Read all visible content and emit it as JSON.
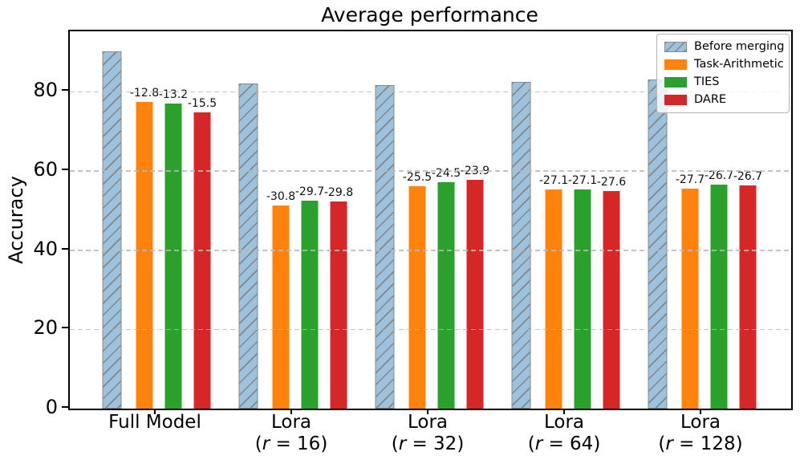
{
  "figure": {
    "title": "Average performance",
    "ylabel": "Accuracy"
  },
  "chart_data": {
    "type": "bar",
    "title": "Average performance",
    "xlabel": "",
    "ylabel": "Accuracy",
    "ylim": [
      0,
      95.3
    ],
    "yticks": [
      0,
      20,
      40,
      60,
      80
    ],
    "grid": "horizontal dashed gridlines drawn above bars",
    "legend_position": "upper right",
    "categories": [
      {
        "line1": "Full Model",
        "line2": ""
      },
      {
        "line1": "Lora",
        "line2": "(r = 16)"
      },
      {
        "line1": "Lora",
        "line2": "(r = 32)"
      },
      {
        "line1": "Lora",
        "line2": "(r = 64)"
      },
      {
        "line1": "Lora",
        "line2": "(r = 128)"
      }
    ],
    "series": [
      {
        "name": "Before merging",
        "color": "#9cc2de",
        "edge_color": "#8a8a8a",
        "hatch": "/",
        "values": [
          90.3,
          82.2,
          81.7,
          82.5,
          83.2
        ],
        "bar_labels": [
          "",
          "",
          "",
          "",
          ""
        ]
      },
      {
        "name": "Task-Arithmetic",
        "color": "#fd830d",
        "values": [
          77.5,
          51.4,
          56.2,
          55.4,
          55.5
        ],
        "bar_labels": [
          "-12.8",
          "-30.8",
          "-25.5",
          "-27.1",
          "-27.7"
        ]
      },
      {
        "name": "TIES",
        "color": "#2ca02c",
        "values": [
          77.1,
          52.5,
          57.2,
          55.4,
          56.5
        ],
        "bar_labels": [
          "-13.2",
          "-29.7",
          "-24.5",
          "-27.1",
          "-26.7"
        ]
      },
      {
        "name": "DARE",
        "color": "#d62728",
        "values": [
          74.8,
          52.4,
          57.8,
          54.9,
          56.4
        ],
        "bar_labels": [
          "-15.5",
          "-29.8",
          "-23.9",
          "-27.6",
          "-26.7"
        ]
      }
    ]
  }
}
